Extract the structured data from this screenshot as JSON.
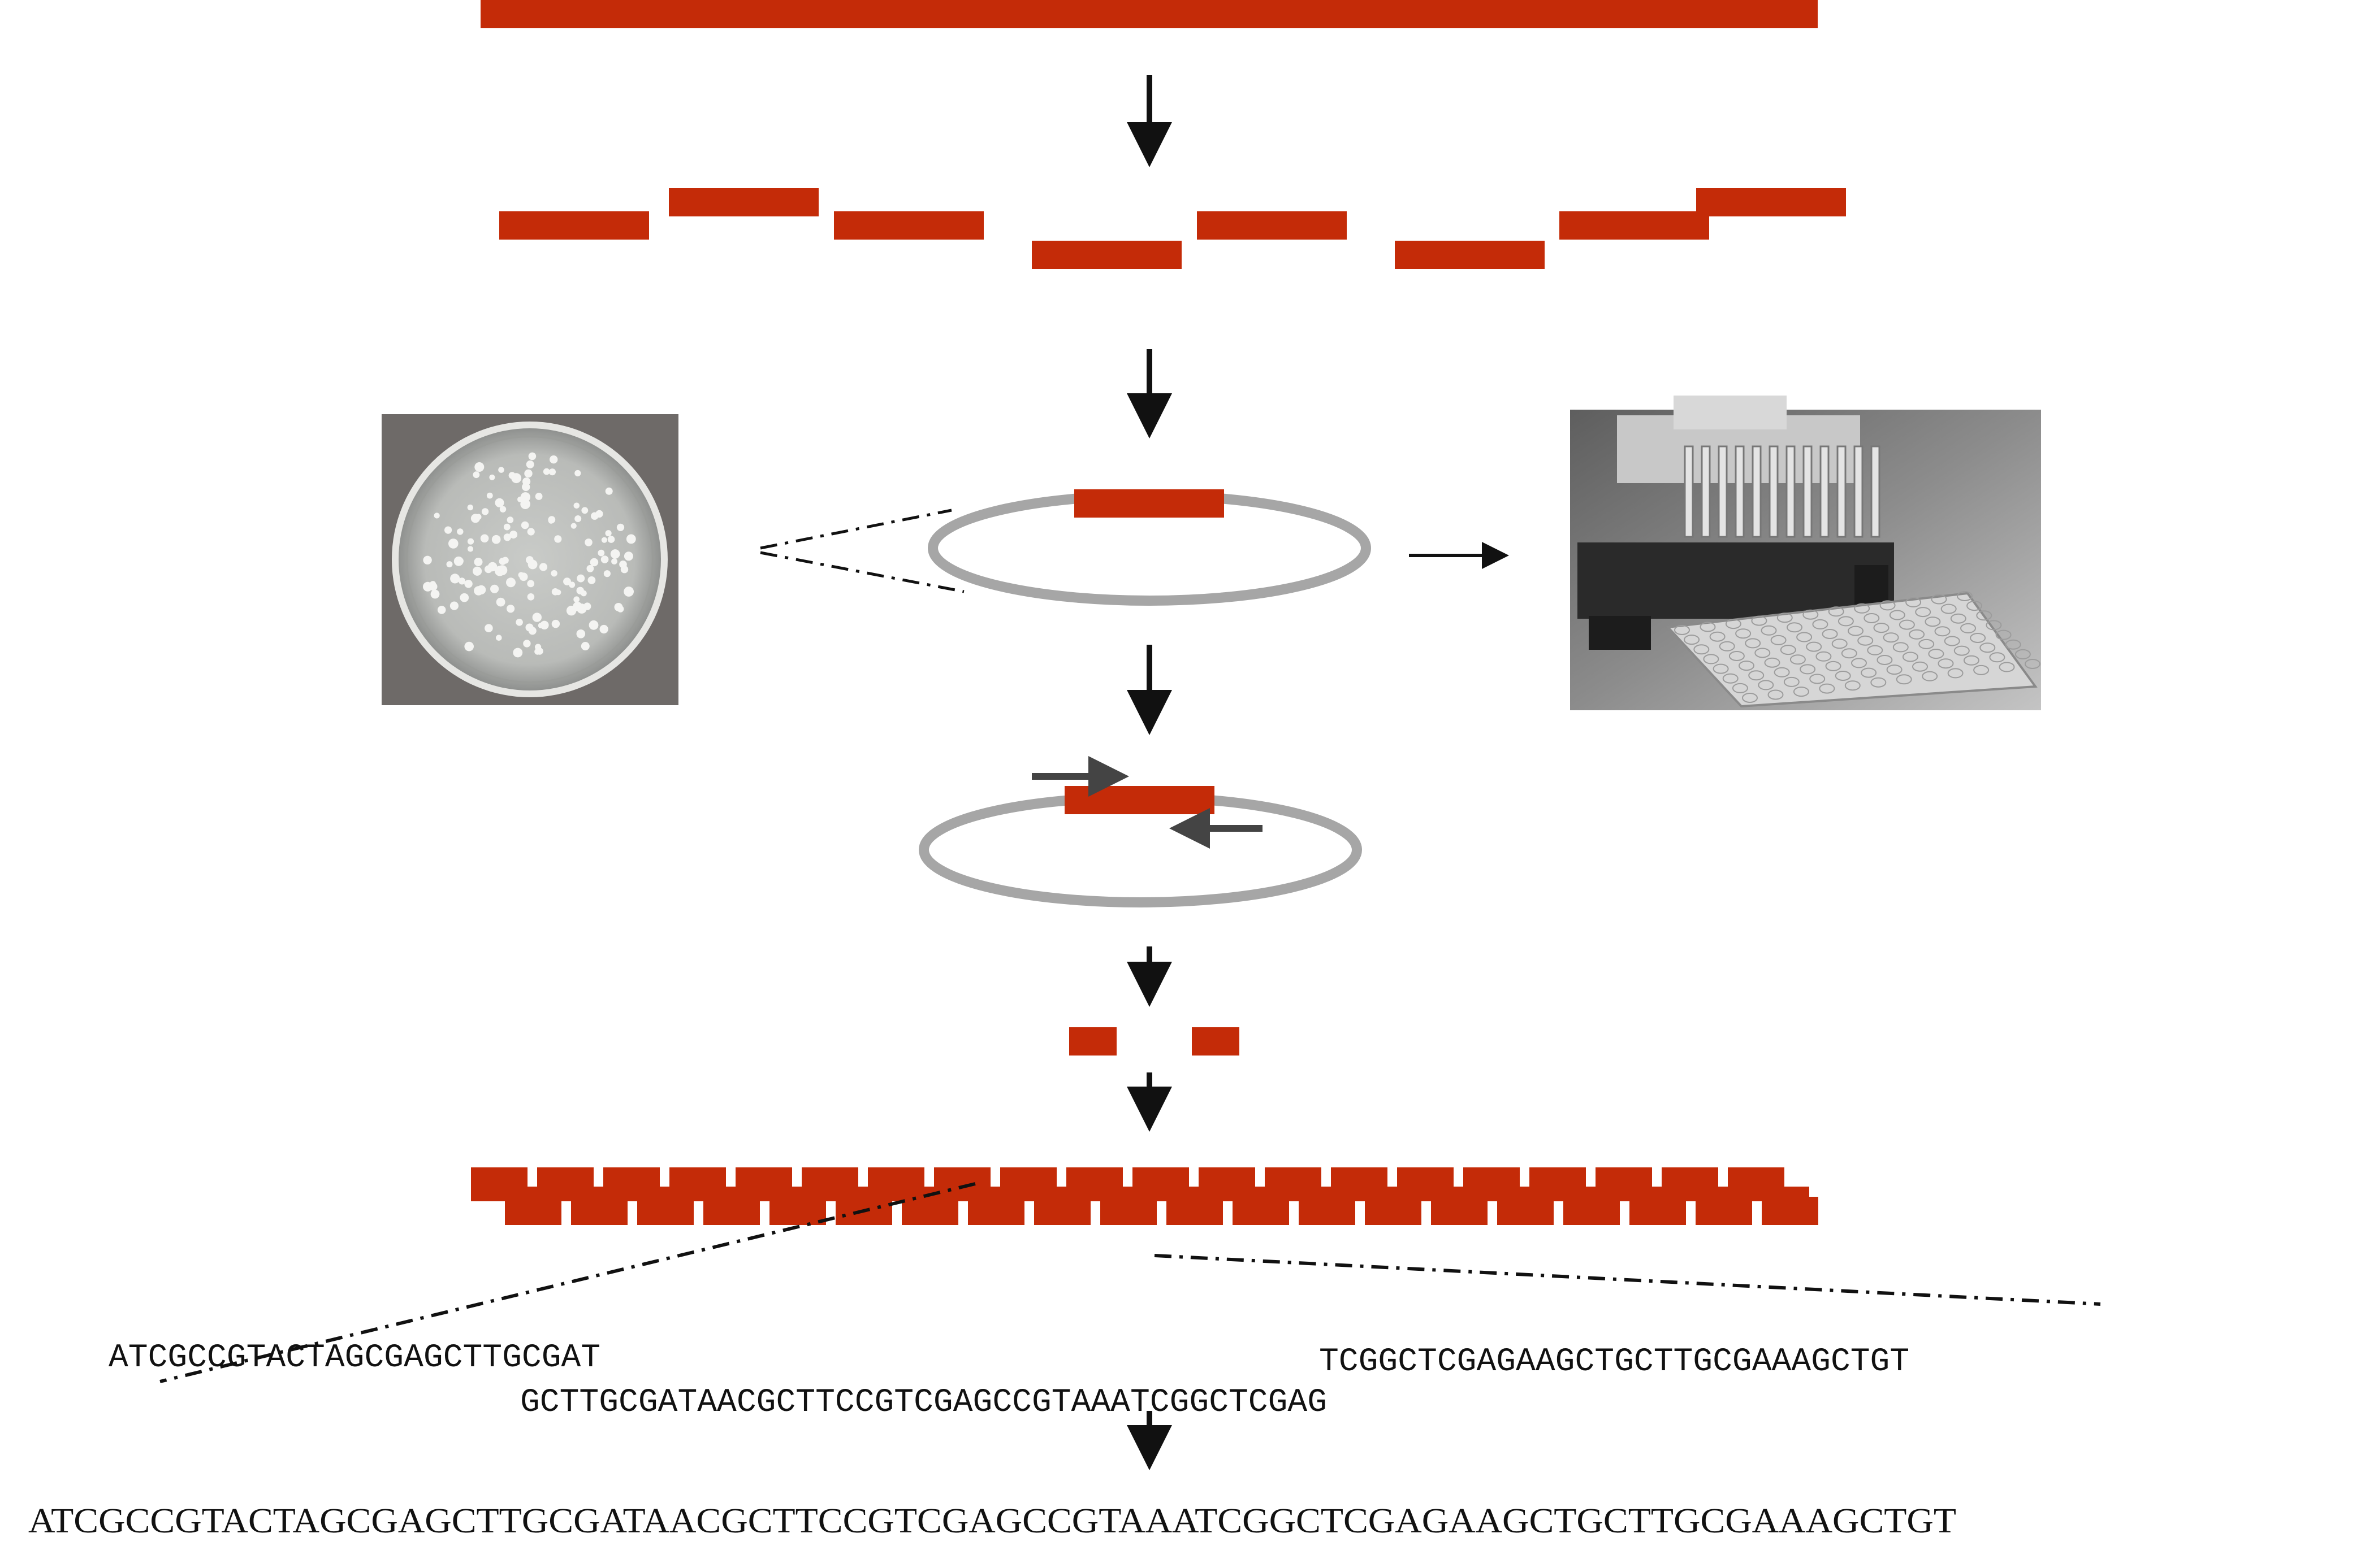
{
  "colors": {
    "dna": "#c42b08",
    "plasmid": "#a6a6a6",
    "arrow": "#111111",
    "primer": "#444444",
    "petri_background": "#6e6a68",
    "robot_background": "#9a9a9a"
  },
  "images": {
    "petri_dish": "petri-dish-with-colonies",
    "pipetting_robot": "multichannel-pipetting-robot-with-microplate"
  },
  "sequences": {
    "read_1": "ATCGCCGTACTAGCGAGCTTGCGAT",
    "read_2": "GCTTGCGATAACGCTTCCGTCGAGCCGTAAATCGGCTCGAG",
    "read_3": "TCGGCTCGAGAAGCTGCTTGCGAAAGCTGT",
    "assembled": "ATCGCCGTACTAGCGAGCTTGCGATAACGCTTCCGTCGAGCCGTAAATCGGCTCGAGAAGCTGCTTGCGAAAGCTGT"
  }
}
